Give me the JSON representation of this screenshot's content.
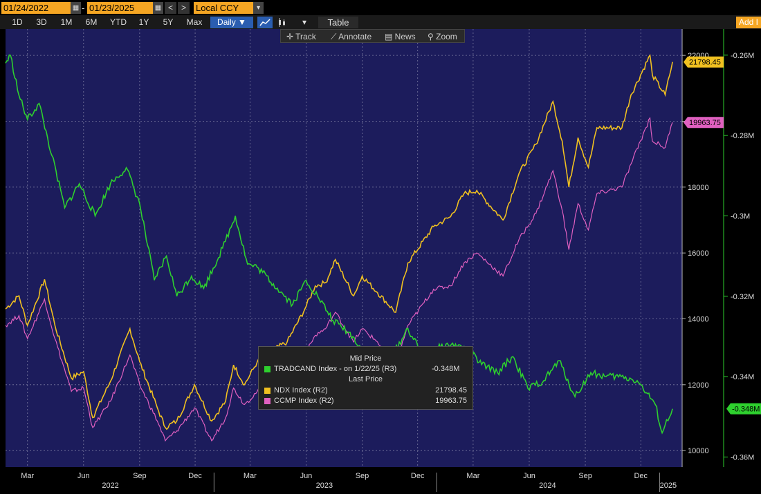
{
  "toolbar": {
    "start_date": "01/24/2022",
    "separator": "-",
    "end_date": "01/23/2025",
    "prev": "<",
    "next": ">",
    "currency": "Local CCY",
    "currency_arrow": "▾",
    "ranges": [
      "1D",
      "3D",
      "1M",
      "6M",
      "YTD",
      "1Y",
      "5Y",
      "Max"
    ],
    "frequency": "Daily ▼",
    "table_label": "Table",
    "add_label": "Add I",
    "more_arrow": "▾"
  },
  "tools": {
    "track": "Track",
    "annotate": "Annotate",
    "news": "News",
    "zoom": "Zoom"
  },
  "tooltip": {
    "mid_price_header": "Mid Price",
    "tradcand_label": "TRADCAND Index -  on 1/22/25  (R3)",
    "tradcand_value": "-0.348M",
    "last_price_header": "Last Price",
    "ndx_label": "NDX Index  (R2)",
    "ndx_value": "21798.45",
    "ccmp_label": "CCMP Index  (R2)",
    "ccmp_value": "19963.75"
  },
  "colors": {
    "background": "#1c1c5c",
    "ndx": "#f0c020",
    "ccmp": "#e060c0",
    "tradcand": "#2ed02e",
    "accent": "#f5a623"
  },
  "chart_data": {
    "type": "line",
    "x_month_labels": [
      "Mar",
      "Jun",
      "Sep",
      "Dec",
      "Mar",
      "Jun",
      "Sep",
      "Dec",
      "Mar",
      "Jun",
      "Sep",
      "Dec"
    ],
    "x_year_labels": [
      "2022",
      "2023",
      "2024",
      "2025"
    ],
    "y_right_ticks": [
      "22000",
      "20000",
      "18000",
      "16000",
      "14000",
      "12000",
      "10000"
    ],
    "y_right2_ticks": [
      "-0.26M",
      "-0.28M",
      "-0.3M",
      "-0.32M",
      "-0.34M",
      "-0.36M"
    ],
    "y_right_range": [
      9500,
      22800
    ],
    "y_right2_range": [
      -0.3625,
      -0.2535
    ],
    "grid": true,
    "series": [
      {
        "name": "NDX Index",
        "axis": "R2",
        "last_label": "21798.45",
        "x": [
          "2022-01-24",
          "2022-02-15",
          "2022-03-01",
          "2022-03-29",
          "2022-04-15",
          "2022-05-12",
          "2022-06-01",
          "2022-06-16",
          "2022-07-15",
          "2022-08-16",
          "2022-09-01",
          "2022-09-30",
          "2022-10-13",
          "2022-11-01",
          "2022-11-30",
          "2022-12-28",
          "2023-01-20",
          "2023-02-02",
          "2023-02-20",
          "2023-03-13",
          "2023-04-03",
          "2023-05-01",
          "2023-05-30",
          "2023-06-16",
          "2023-07-03",
          "2023-07-19",
          "2023-08-18",
          "2023-09-01",
          "2023-09-26",
          "2023-10-26",
          "2023-11-15",
          "2023-12-27",
          "2024-01-24",
          "2024-02-15",
          "2024-03-07",
          "2024-04-19",
          "2024-05-15",
          "2024-06-12",
          "2024-07-10",
          "2024-07-25",
          "2024-08-05",
          "2024-08-20",
          "2024-09-06",
          "2024-09-20",
          "2024-10-31",
          "2024-11-15",
          "2024-12-16",
          "2024-12-20",
          "2025-01-10",
          "2025-01-22"
        ],
        "values": [
          14300,
          14700,
          13800,
          15200,
          13800,
          12200,
          12400,
          11000,
          12100,
          13700,
          12700,
          11300,
          10700,
          10900,
          12000,
          10900,
          11500,
          12600,
          12000,
          12700,
          13000,
          13300,
          14300,
          15000,
          15100,
          15800,
          14700,
          15300,
          14800,
          14200,
          15700,
          16800,
          17100,
          17800,
          17900,
          17000,
          18400,
          19300,
          20600,
          19400,
          18000,
          19500,
          18600,
          19800,
          19800,
          20800,
          22000,
          21400,
          20800,
          21798.45
        ]
      },
      {
        "name": "CCMP Index",
        "axis": "R2",
        "last_label": "19963.75",
        "x": [
          "2022-01-24",
          "2022-02-15",
          "2022-03-01",
          "2022-03-29",
          "2022-04-15",
          "2022-05-12",
          "2022-06-01",
          "2022-06-16",
          "2022-07-15",
          "2022-08-16",
          "2022-09-01",
          "2022-09-30",
          "2022-10-13",
          "2022-11-01",
          "2022-11-30",
          "2022-12-28",
          "2023-01-20",
          "2023-02-02",
          "2023-02-20",
          "2023-03-13",
          "2023-04-03",
          "2023-05-01",
          "2023-05-30",
          "2023-06-16",
          "2023-07-03",
          "2023-07-19",
          "2023-08-18",
          "2023-09-01",
          "2023-09-26",
          "2023-10-26",
          "2023-11-15",
          "2023-12-27",
          "2024-01-24",
          "2024-02-15",
          "2024-03-07",
          "2024-04-19",
          "2024-05-15",
          "2024-06-12",
          "2024-07-10",
          "2024-07-25",
          "2024-08-05",
          "2024-08-20",
          "2024-09-06",
          "2024-09-20",
          "2024-10-31",
          "2024-11-15",
          "2024-12-16",
          "2024-12-20",
          "2025-01-10",
          "2025-01-22"
        ],
        "values": [
          13800,
          14100,
          13400,
          14600,
          13400,
          11800,
          11900,
          10700,
          11500,
          12900,
          12000,
          10900,
          10300,
          10600,
          11300,
          10300,
          11000,
          11900,
          11400,
          11800,
          12100,
          12300,
          12900,
          13500,
          13700,
          14200,
          13300,
          13700,
          13300,
          12600,
          13800,
          14900,
          15000,
          15700,
          16000,
          15300,
          16400,
          17200,
          18500,
          17300,
          16100,
          17500,
          16700,
          17800,
          18000,
          18700,
          20100,
          19400,
          19200,
          19963.75
        ]
      },
      {
        "name": "TRADCAND Index",
        "axis": "R3",
        "unit": "M",
        "last_label": "-0.348M",
        "x": [
          "2022-01-24",
          "2022-02-01",
          "2022-02-15",
          "2022-03-01",
          "2022-03-20",
          "2022-04-10",
          "2022-05-01",
          "2022-05-25",
          "2022-06-20",
          "2022-07-15",
          "2022-08-10",
          "2022-09-01",
          "2022-09-25",
          "2022-10-15",
          "2022-11-01",
          "2022-11-25",
          "2022-12-15",
          "2023-01-15",
          "2023-02-05",
          "2023-02-25",
          "2023-03-15",
          "2023-04-15",
          "2023-05-10",
          "2023-06-01",
          "2023-06-20",
          "2023-07-15",
          "2023-08-10",
          "2023-09-01",
          "2023-09-25",
          "2023-10-20",
          "2023-11-15",
          "2023-12-10",
          "2024-01-01",
          "2024-01-25",
          "2024-02-20",
          "2024-03-15",
          "2024-04-10",
          "2024-05-05",
          "2024-05-30",
          "2024-06-25",
          "2024-07-20",
          "2024-08-15",
          "2024-09-10",
          "2024-10-05",
          "2024-10-30",
          "2024-11-25",
          "2024-12-10",
          "2024-12-25",
          "2025-01-05",
          "2025-01-22"
        ],
        "values": [
          -0.262,
          -0.26,
          -0.27,
          -0.276,
          -0.272,
          -0.285,
          -0.298,
          -0.292,
          -0.3,
          -0.292,
          -0.288,
          -0.297,
          -0.316,
          -0.31,
          -0.32,
          -0.315,
          -0.318,
          -0.308,
          -0.3,
          -0.312,
          -0.313,
          -0.318,
          -0.322,
          -0.316,
          -0.32,
          -0.326,
          -0.329,
          -0.333,
          -0.342,
          -0.335,
          -0.328,
          -0.335,
          -0.333,
          -0.332,
          -0.333,
          -0.337,
          -0.339,
          -0.335,
          -0.343,
          -0.341,
          -0.336,
          -0.345,
          -0.339,
          -0.34,
          -0.34,
          -0.341,
          -0.344,
          -0.347,
          -0.354,
          -0.348
        ]
      }
    ]
  }
}
